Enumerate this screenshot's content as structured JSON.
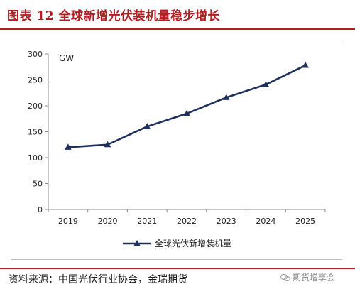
{
  "title": "图表 12 全球新增光伏装机量稳步增长",
  "source": "资料来源：中国光伏行业协会，金瑞期货",
  "watermark": "期货增享会",
  "chart_data": {
    "type": "line",
    "unit_label": "GW",
    "categories": [
      "2019",
      "2020",
      "2021",
      "2022",
      "2023",
      "2024",
      "2025"
    ],
    "series": [
      {
        "name": "全球光伏新增装机量",
        "values": [
          120,
          125,
          160,
          185,
          216,
          241,
          278
        ],
        "color": "#1f2f5c",
        "marker": "triangle"
      }
    ],
    "ylim": [
      0,
      300
    ],
    "yticks": [
      0,
      50,
      100,
      150,
      200,
      250,
      300
    ],
    "grid": false,
    "legend_position": "bottom"
  }
}
